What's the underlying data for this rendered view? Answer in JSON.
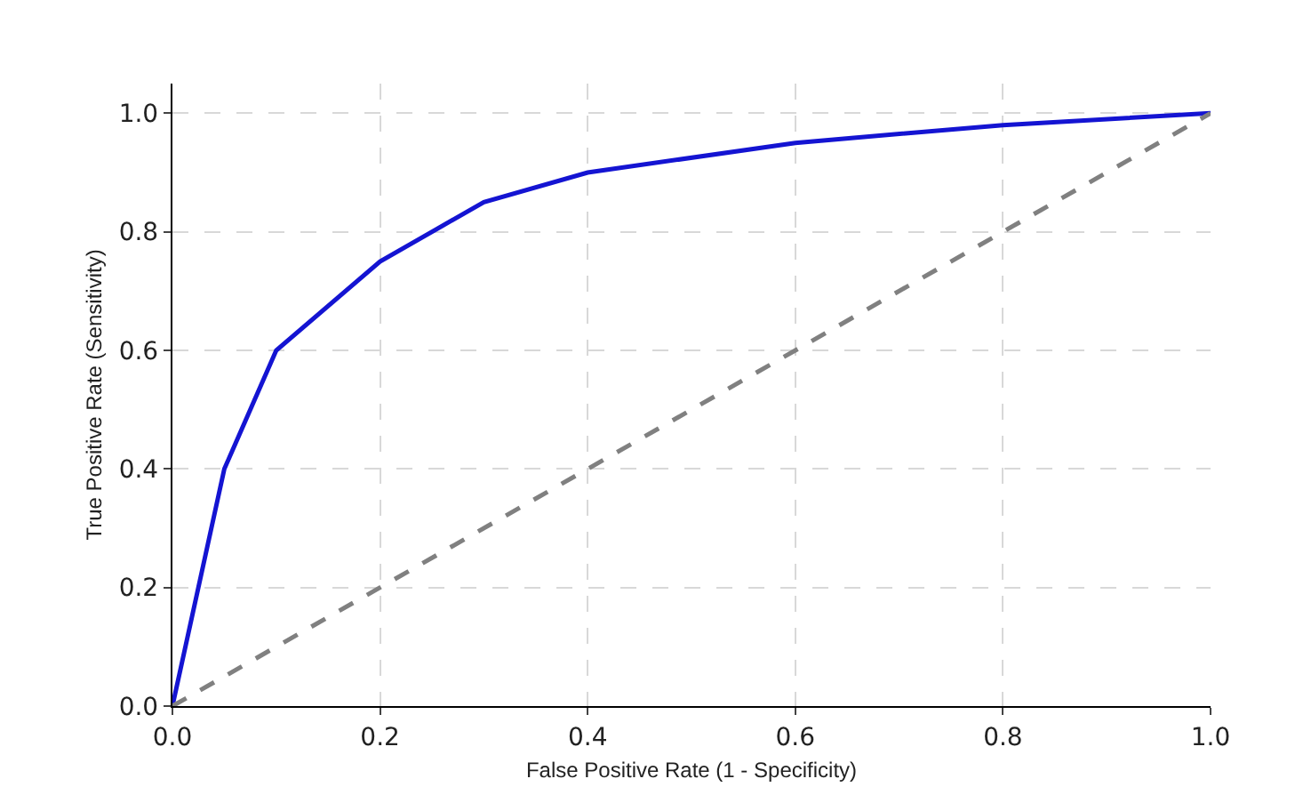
{
  "chart_data": {
    "type": "line",
    "xlabel": "False Positive Rate (1 - Specificity)",
    "ylabel": "True Positive Rate (Sensitivity)",
    "xlim": [
      0,
      1
    ],
    "ylim": [
      0,
      1.05
    ],
    "xticks": [
      {
        "value": 0,
        "label": "0.0"
      },
      {
        "value": 0.2,
        "label": "0.2"
      },
      {
        "value": 0.4,
        "label": "0.4"
      },
      {
        "value": 0.6,
        "label": "0.6"
      },
      {
        "value": 0.8,
        "label": "0.8"
      },
      {
        "value": 1,
        "label": "1.0"
      }
    ],
    "yticks": [
      {
        "value": 0,
        "label": "0.0"
      },
      {
        "value": 0.2,
        "label": "0.2"
      },
      {
        "value": 0.4,
        "label": "0.4"
      },
      {
        "value": 0.6,
        "label": "0.6"
      },
      {
        "value": 0.8,
        "label": "0.8"
      },
      {
        "value": 1,
        "label": "1.0"
      }
    ],
    "grid": true,
    "series": [
      {
        "color": "#1414d2",
        "line_style": "solid",
        "x": [
          0,
          0.05,
          0.1,
          0.2,
          0.3,
          0.4,
          0.6,
          0.8,
          1
        ],
        "values": [
          0,
          0.4,
          0.6,
          0.75,
          0.85,
          0.9,
          0.95,
          0.98,
          1
        ]
      },
      {
        "color": "#808080",
        "line_style": "dashed",
        "x": [
          0,
          1
        ],
        "values": [
          0,
          1
        ]
      }
    ]
  }
}
